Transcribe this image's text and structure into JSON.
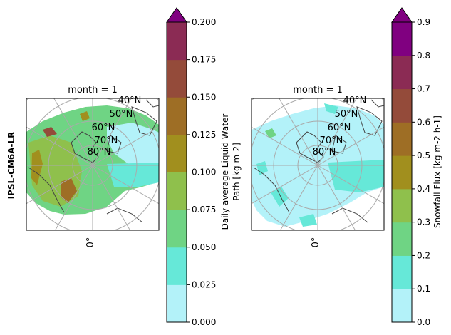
{
  "figure": {
    "row_label": "IPSL-CM6A-LR"
  },
  "colormap": [
    "#b3f2f9",
    "#66e8d8",
    "#6fd484",
    "#8fc04c",
    "#a18f1e",
    "#9e6e25",
    "#944b3a",
    "#8b2b54",
    "#800080"
  ],
  "chart_data": [
    {
      "type": "heatmap",
      "title": "month = 1",
      "projection": "north-polar-stereographic",
      "lat_labels": [
        "40°N",
        "50°N",
        "60°N",
        "70°N",
        "80°N"
      ],
      "lon_labels": [
        "0°"
      ],
      "colorbar": {
        "label_lines": [
          "Daily average Liquid Water",
          "Path [kg m-2]"
        ],
        "ticks": [
          "0.000",
          "0.025",
          "0.050",
          "0.075",
          "0.100",
          "0.125",
          "0.150",
          "0.175",
          "0.200"
        ],
        "range": [
          0,
          0.2
        ],
        "levels": 8,
        "extend": "max"
      },
      "dominant_level": 2
    },
    {
      "type": "heatmap",
      "title": "month = 1",
      "projection": "north-polar-stereographic",
      "lat_labels": [
        "40°N",
        "50°N",
        "60°N",
        "70°N",
        "80°N"
      ],
      "lon_labels": [
        "0°"
      ],
      "colorbar": {
        "label_lines": [
          "Snowfall Flux [kg m-2 h-1]"
        ],
        "ticks": [
          "0.0",
          "0.1",
          "0.2",
          "0.3",
          "0.4",
          "0.5",
          "0.6",
          "0.7",
          "0.8",
          "0.9"
        ],
        "range": [
          0,
          0.9
        ],
        "levels": 9,
        "extend": "max"
      },
      "dominant_level": 0
    }
  ]
}
